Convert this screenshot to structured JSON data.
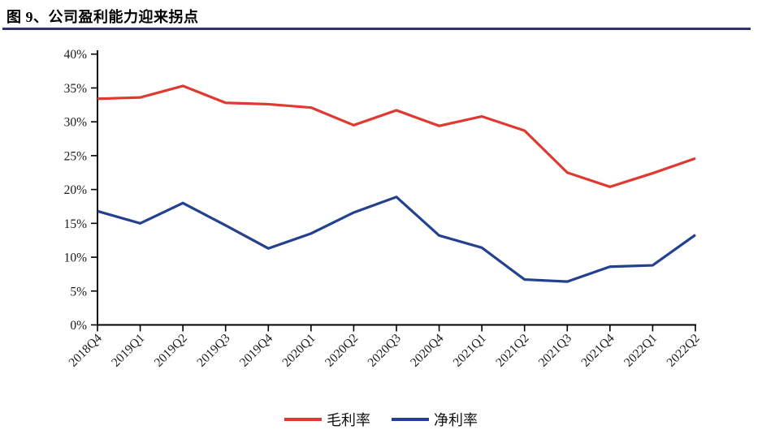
{
  "page": {
    "title": "图 9、公司盈利能力迎来拐点"
  },
  "accent": {
    "rule_color": "#31316B",
    "axis_color": "#000000",
    "text_color": "#1a1a1a"
  },
  "chart_data": {
    "type": "line",
    "title": "图 9、公司盈利能力迎来拐点",
    "categories": [
      "2018Q4",
      "2019Q1",
      "2019Q2",
      "2019Q3",
      "2019Q4",
      "2020Q1",
      "2020Q2",
      "2020Q3",
      "2020Q4",
      "2021Q1",
      "2021Q2",
      "2021Q3",
      "2021Q4",
      "2022Q1",
      "2022Q2"
    ],
    "series": [
      {
        "name": "毛利率",
        "color": "#E03931",
        "values": [
          33.4,
          33.6,
          35.3,
          32.8,
          32.6,
          32.1,
          29.5,
          31.7,
          29.4,
          30.8,
          28.7,
          22.5,
          20.4,
          22.4,
          24.6
        ]
      },
      {
        "name": "净利率",
        "color": "#24418F",
        "values": [
          16.8,
          15.0,
          18.0,
          14.7,
          11.3,
          13.5,
          16.6,
          18.9,
          13.2,
          11.4,
          6.7,
          6.4,
          8.6,
          8.8,
          13.3
        ]
      }
    ],
    "xlabel": "",
    "ylabel": "",
    "ylim": [
      0,
      40
    ],
    "y_tick_step": 5,
    "y_tick_labels": [
      "0%",
      "5%",
      "10%",
      "15%",
      "20%",
      "25%",
      "30%",
      "35%",
      "40%"
    ],
    "y_tick_values": [
      0,
      5,
      10,
      15,
      20,
      25,
      30,
      35,
      40
    ],
    "grid": false,
    "legend_position": "bottom-center",
    "x_label_rotation_deg": -45
  }
}
